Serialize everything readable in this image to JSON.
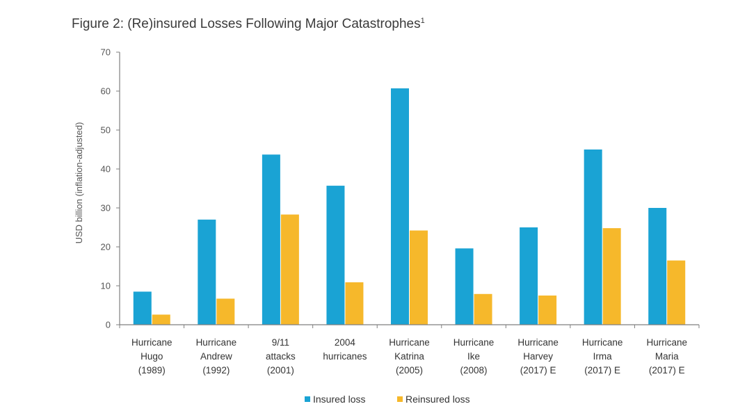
{
  "chart_data": {
    "type": "bar",
    "title": "Figure 2: (Re)insured Losses Following Major Catastrophes",
    "title_superscript": "1",
    "ylabel": "USD billion (inflation-adjusted)",
    "xlabel": "",
    "ylim": [
      0,
      70
    ],
    "yticks": [
      0,
      10,
      20,
      30,
      40,
      50,
      60,
      70
    ],
    "grid": false,
    "legend_position": "bottom",
    "categories": [
      [
        "Hurricane",
        "Hugo",
        "(1989)"
      ],
      [
        "Hurricane",
        "Andrew",
        "(1992)"
      ],
      [
        "9/11",
        "attacks",
        "(2001)"
      ],
      [
        "2004",
        "hurricanes"
      ],
      [
        "Hurricane",
        "Katrina",
        "(2005)"
      ],
      [
        "Hurricane",
        "Ike",
        "(2008)"
      ],
      [
        "Hurricane",
        "Harvey",
        "(2017) E"
      ],
      [
        "Hurricane",
        "Irma",
        "(2017) E"
      ],
      [
        "Hurricane",
        "Maria",
        "(2017) E"
      ]
    ],
    "series": [
      {
        "name": "Insured loss",
        "color": "#1aa3d4",
        "values": [
          8.5,
          27,
          43.7,
          35.7,
          60.7,
          19.6,
          25,
          45,
          30
        ]
      },
      {
        "name": "Reinsured loss",
        "color": "#f6b82b",
        "values": [
          2.6,
          6.7,
          28.3,
          10.9,
          24.2,
          7.9,
          7.5,
          24.8,
          16.5
        ]
      }
    ]
  }
}
